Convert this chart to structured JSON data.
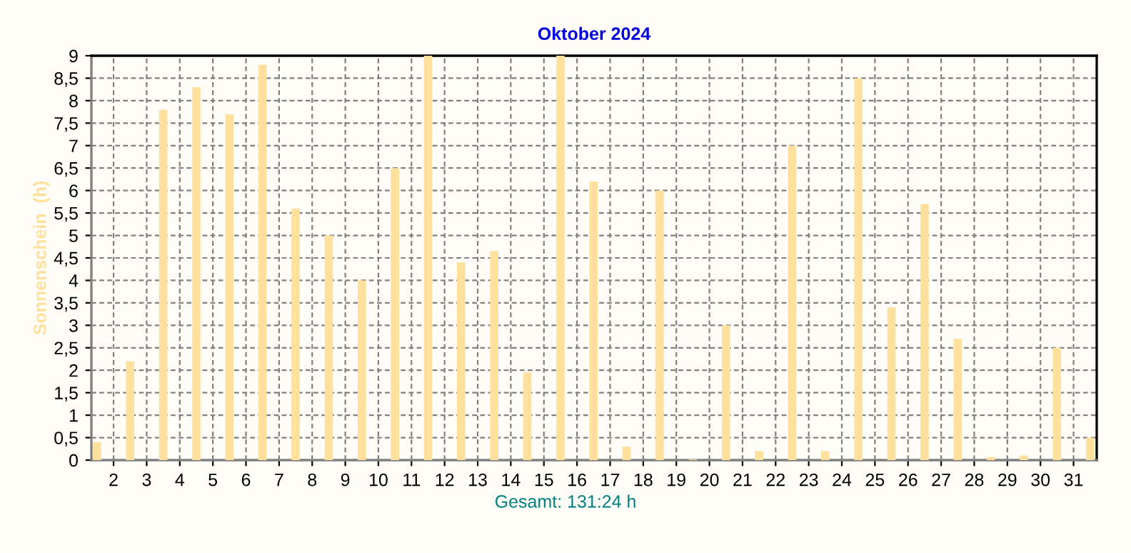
{
  "chart_data": {
    "type": "bar",
    "title": "Oktober 2024",
    "ylabel": "Sonnenschein  (h)",
    "x": [
      1.5,
      2.5,
      3.5,
      4.5,
      5.5,
      6.5,
      7.5,
      8.5,
      9.5,
      10.5,
      11.5,
      12.5,
      13.5,
      14.5,
      15.5,
      16.5,
      17.5,
      18.5,
      19.5,
      20.5,
      21.5,
      22.5,
      23.5,
      24.5,
      25.5,
      26.5,
      27.5,
      28.5,
      29.5,
      30.5,
      31.5
    ],
    "values": [
      0.4,
      2.2,
      7.8,
      8.3,
      7.7,
      8.8,
      5.6,
      5.0,
      4.0,
      6.5,
      9.0,
      4.4,
      4.65,
      1.95,
      9.0,
      6.2,
      0.3,
      6.0,
      0.02,
      3.0,
      0.2,
      7.0,
      0.2,
      8.5,
      3.4,
      5.7,
      2.7,
      0.07,
      0.1,
      2.5,
      0.5
    ],
    "color": "#ffe09c",
    "xlim": [
      1.33,
      31.7
    ],
    "xticks": [
      2,
      3,
      4,
      5,
      6,
      7,
      8,
      9,
      10,
      11,
      12,
      13,
      14,
      15,
      16,
      17,
      18,
      19,
      20,
      21,
      22,
      23,
      24,
      25,
      26,
      27,
      28,
      29,
      30,
      31
    ],
    "ylim": [
      0,
      9
    ],
    "yticks": [
      0,
      {
        "value": 0.5,
        "label": "0,5"
      },
      1,
      {
        "value": 1.5,
        "label": "1,5"
      },
      2,
      {
        "value": 2.5,
        "label": "2,5"
      },
      3,
      {
        "value": 3.5,
        "label": "3,5"
      },
      4,
      {
        "value": 4.5,
        "label": "4,5"
      },
      5,
      {
        "value": 5.5,
        "label": "5,5"
      },
      6,
      {
        "value": 6.5,
        "label": "6,5"
      },
      7,
      {
        "value": 7.5,
        "label": "7,5"
      },
      8,
      {
        "value": 8.5,
        "label": "8,5"
      },
      9
    ],
    "grid": true,
    "annotations": [
      "Gesamt: 131:24 h"
    ]
  }
}
